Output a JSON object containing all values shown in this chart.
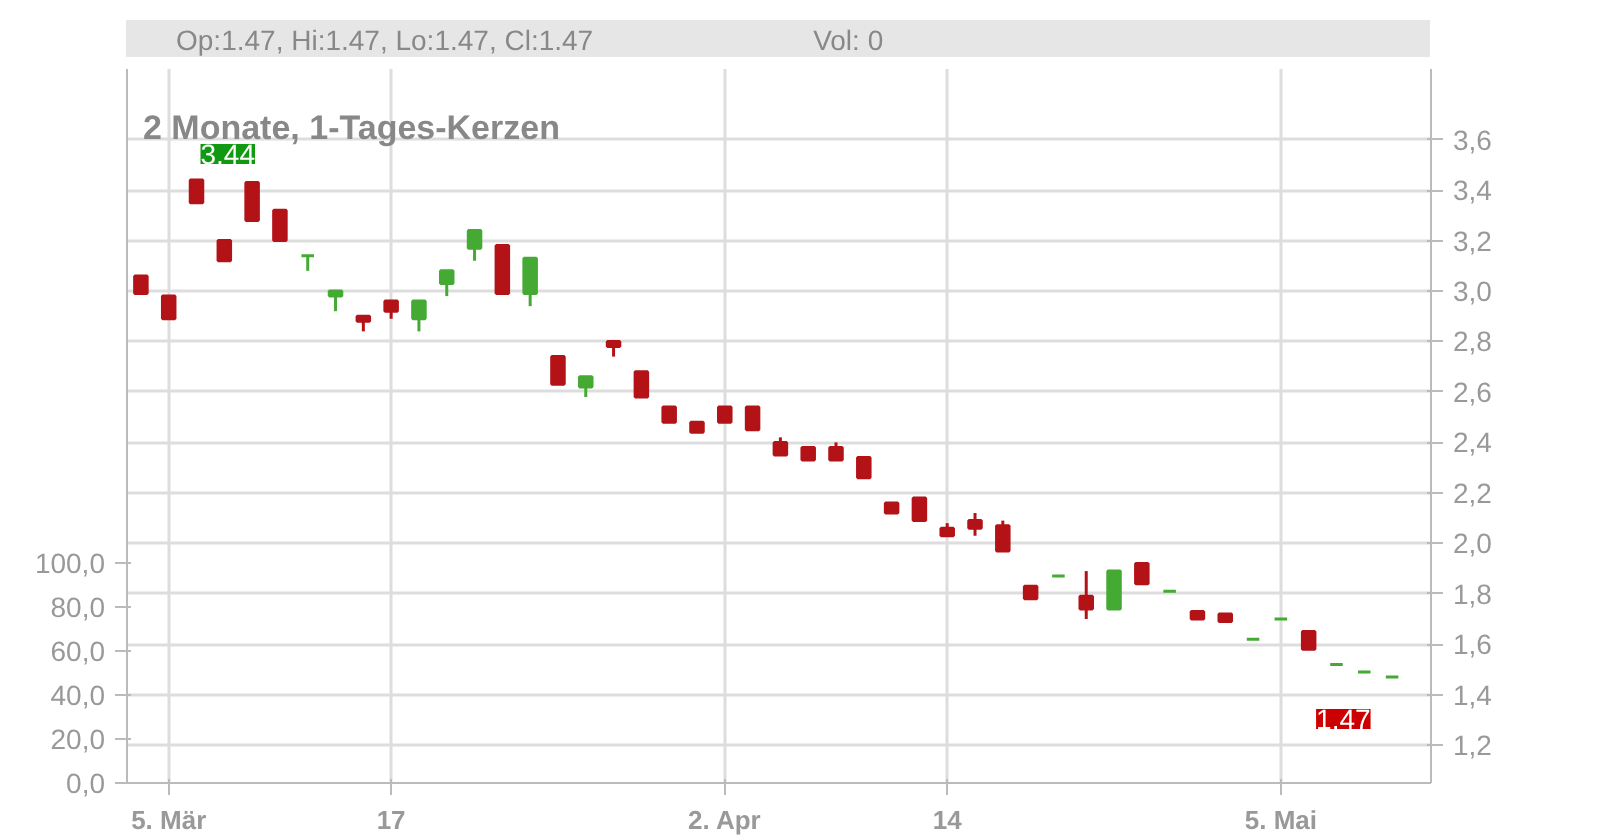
{
  "chart_data": {
    "type": "candlestick",
    "title": "2 Monate, 1-Tages-Kerzen",
    "categories": [
      null,
      "5. Mär",
      null,
      null,
      null,
      null,
      null,
      null,
      null,
      "17",
      null,
      null,
      null,
      null,
      null,
      null,
      null,
      null,
      null,
      null,
      null,
      "2. Apr",
      null,
      null,
      null,
      null,
      null,
      null,
      null,
      "14",
      null,
      null,
      null,
      null,
      null,
      null,
      null,
      null,
      null,
      null,
      null,
      "5. Mai",
      null,
      null,
      null,
      null
    ],
    "ohlc": [
      [
        3.06,
        3.06,
        2.99,
        2.99
      ],
      [
        2.98,
        2.98,
        2.89,
        2.89
      ],
      [
        3.44,
        3.44,
        3.35,
        3.35
      ],
      [
        3.2,
        3.2,
        3.12,
        3.12
      ],
      [
        3.43,
        3.43,
        3.28,
        3.28
      ],
      [
        3.32,
        3.32,
        3.2,
        3.2
      ],
      [
        3.14,
        3.14,
        3.08,
        3.14
      ],
      [
        2.98,
        3.0,
        2.92,
        3.0
      ],
      [
        2.9,
        2.9,
        2.84,
        2.88
      ],
      [
        2.96,
        2.96,
        2.89,
        2.92
      ],
      [
        2.89,
        2.96,
        2.84,
        2.96
      ],
      [
        3.03,
        3.08,
        2.98,
        3.08
      ],
      [
        3.17,
        3.24,
        3.12,
        3.24
      ],
      [
        3.18,
        3.18,
        2.99,
        2.99
      ],
      [
        2.99,
        3.13,
        2.94,
        3.13
      ],
      [
        2.74,
        2.74,
        2.63,
        2.63
      ],
      [
        2.62,
        2.66,
        2.58,
        2.66
      ],
      [
        2.8,
        2.8,
        2.74,
        2.78
      ],
      [
        2.68,
        2.68,
        2.58,
        2.58
      ],
      [
        2.54,
        2.54,
        2.48,
        2.48
      ],
      [
        2.48,
        2.48,
        2.44,
        2.44
      ],
      [
        2.54,
        2.54,
        2.48,
        2.48
      ],
      [
        2.54,
        2.54,
        2.45,
        2.45
      ],
      [
        2.4,
        2.42,
        2.35,
        2.35
      ],
      [
        2.38,
        2.38,
        2.33,
        2.33
      ],
      [
        2.38,
        2.4,
        2.33,
        2.33
      ],
      [
        2.34,
        2.34,
        2.26,
        2.26
      ],
      [
        2.16,
        2.16,
        2.12,
        2.12
      ],
      [
        2.18,
        2.18,
        2.09,
        2.09
      ],
      [
        2.06,
        2.08,
        2.03,
        2.03
      ],
      [
        2.09,
        2.12,
        2.03,
        2.06
      ],
      [
        2.07,
        2.09,
        1.97,
        1.97
      ],
      [
        1.83,
        1.83,
        1.78,
        1.78
      ],
      [
        1.87,
        1.87,
        1.87,
        1.87
      ],
      [
        1.79,
        1.89,
        1.7,
        1.74
      ],
      [
        1.74,
        1.89,
        1.74,
        1.89
      ],
      [
        1.92,
        1.92,
        1.84,
        1.84
      ],
      [
        1.81,
        1.81,
        1.81,
        1.81
      ],
      [
        1.73,
        1.73,
        1.7,
        1.7
      ],
      [
        1.72,
        1.72,
        1.69,
        1.69
      ],
      [
        1.62,
        1.62,
        1.62,
        1.62
      ],
      [
        1.7,
        1.7,
        1.7,
        1.7
      ],
      [
        1.65,
        1.65,
        1.58,
        1.58
      ],
      [
        1.52,
        1.52,
        1.52,
        1.52
      ],
      [
        1.49,
        1.49,
        1.49,
        1.49
      ],
      [
        1.47,
        1.47,
        1.47,
        1.47
      ]
    ],
    "colors": [
      "#b31217",
      "#b31217",
      "#b31217",
      "#b31217",
      "#b31217",
      "#b31217",
      "#44aa33",
      "#44aa33",
      "#b31217",
      "#b31217",
      "#44aa33",
      "#44aa33",
      "#44aa33",
      "#b31217",
      "#44aa33",
      "#b31217",
      "#44aa33",
      "#b31217",
      "#b31217",
      "#b31217",
      "#b31217",
      "#b31217",
      "#b31217",
      "#b31217",
      "#b31217",
      "#b31217",
      "#b31217",
      "#b31217",
      "#b31217",
      "#b31217",
      "#b31217",
      "#b31217",
      "#b31217",
      "#44aa33",
      "#b31217",
      "#44aa33",
      "#b31217",
      "#44aa33",
      "#b31217",
      "#b31217",
      "#44aa33",
      "#44aa33",
      "#b31217",
      "#44aa33",
      "#44aa33",
      "#44aa33"
    ],
    "ylim": [
      1.05,
      3.88
    ],
    "yticks": [
      {
        "value": 1.2,
        "label": "1,2"
      },
      {
        "value": 1.4,
        "label": "1,4"
      },
      {
        "value": 1.6,
        "label": "1,6"
      },
      {
        "value": 1.8,
        "label": "1,8"
      },
      {
        "value": 2.0,
        "label": "2,0"
      },
      {
        "value": 2.2,
        "label": "2,2"
      },
      {
        "value": 2.4,
        "label": "2,4"
      },
      {
        "value": 2.6,
        "label": "2,6"
      },
      {
        "value": 2.8,
        "label": "2,8"
      },
      {
        "value": 3.0,
        "label": "3,0"
      },
      {
        "value": 3.2,
        "label": "3,2"
      },
      {
        "value": 3.4,
        "label": "3,4"
      },
      {
        "value": 3.6,
        "label": "3,6"
      }
    ],
    "y2lim": [
      0,
      325
    ],
    "y2ticks": [
      {
        "value": 0,
        "label": "0,0"
      },
      {
        "value": 20,
        "label": "20,0"
      },
      {
        "value": 40,
        "label": "40,0"
      },
      {
        "value": 60,
        "label": "60,0"
      },
      {
        "value": 80,
        "label": "80,0"
      },
      {
        "value": 100,
        "label": "100,0"
      }
    ],
    "grid": true,
    "annotations": [
      "Op:1.47, Hi:1.47, Lo:1.47, Cl:1.47",
      "Vol: 0",
      "3,44",
      "1,47"
    ]
  }
}
